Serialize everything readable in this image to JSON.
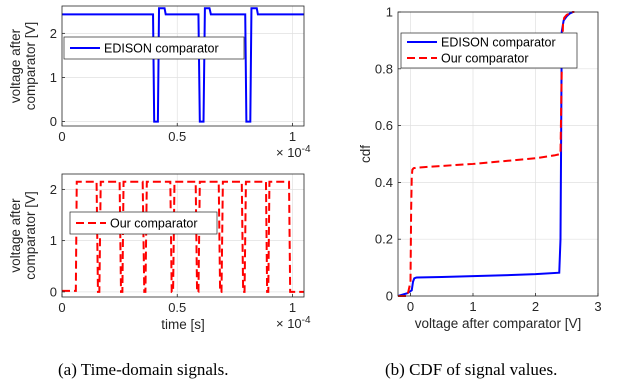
{
  "captions": {
    "a": "(a) Time-domain signals.",
    "b": "(b) CDF of signal values."
  },
  "colors": {
    "edison": "#0000ff",
    "ours": "#ff0000",
    "axis": "#262626",
    "grid": "#e0e0e0"
  },
  "chart_data": [
    {
      "id": "time-top",
      "type": "line",
      "title": "",
      "xlabel": "",
      "ylabel_lines": [
        "voltage after",
        "comparator [V]"
      ],
      "xlim": [
        0,
        0.000105
      ],
      "ylim": [
        -0.1,
        2.62
      ],
      "xticks": [
        0,
        5e-05,
        0.0001
      ],
      "xtick_labels": [
        "0",
        "0.5",
        "1"
      ],
      "yticks": [
        0,
        1,
        2
      ],
      "ytick_labels": [
        "0",
        "1",
        "2"
      ],
      "exponent_label": "× 10",
      "exponent_power": "-4",
      "grid": true,
      "legend_position": "middle-left",
      "series": [
        {
          "name": "EDISON comparator",
          "style": "solid",
          "color": "#0000ff",
          "x": [
            0,
            3.95e-05,
            4e-05,
            4.16e-05,
            4.21e-05,
            4.45e-05,
            4.5e-05,
            5.92e-05,
            5.98e-05,
            6.14e-05,
            6.2e-05,
            6.4e-05,
            6.46e-05,
            7.95e-05,
            8e-05,
            8.17e-05,
            8.22e-05,
            8.45e-05,
            8.5e-05,
            0.000105
          ],
          "y": [
            2.43,
            2.43,
            0,
            0,
            2.57,
            2.57,
            2.43,
            2.43,
            0,
            0,
            2.57,
            2.57,
            2.43,
            2.43,
            0,
            0,
            2.57,
            2.57,
            2.43,
            2.43
          ]
        }
      ]
    },
    {
      "id": "time-bottom",
      "type": "line",
      "title": "",
      "xlabel": "time [s]",
      "ylabel_lines": [
        "voltage after",
        "comparator [V]"
      ],
      "xlim": [
        0,
        0.000105
      ],
      "ylim": [
        -0.1,
        2.3
      ],
      "xticks": [
        0,
        5e-05,
        0.0001
      ],
      "xtick_labels": [
        "0",
        "0.5",
        "1"
      ],
      "yticks": [
        0,
        1,
        2
      ],
      "ytick_labels": [
        "0",
        "1",
        "2"
      ],
      "exponent_label": "× 10",
      "exponent_power": "-4",
      "grid": true,
      "legend_position": "middle-center",
      "series": [
        {
          "name": "Our comparator",
          "style": "dashed",
          "color": "#ff0000",
          "x": [
            0,
            6e-06,
            6.4e-06,
            1.5e-05,
            1.56e-05,
            1.62e-05,
            1.68e-05,
            2.5e-05,
            2.56e-05,
            2.62e-05,
            2.67e-05,
            3.5e-05,
            3.57e-05,
            3.62e-05,
            3.68e-05,
            4.7e-05,
            4.76e-05,
            4.82e-05,
            4.88e-05,
            5.8e-05,
            5.86e-05,
            5.92e-05,
            5.98e-05,
            6.8e-05,
            6.86e-05,
            6.92e-05,
            6.98e-05,
            7.8e-05,
            7.86e-05,
            7.92e-05,
            7.98e-05,
            8.85e-05,
            8.9e-05,
            8.95e-05,
            9e-05,
            9.85e-05,
            9.9e-05,
            0.000105
          ],
          "y": [
            0.02,
            0.02,
            2.15,
            2.15,
            0.0,
            0.0,
            2.15,
            2.15,
            0.0,
            0.0,
            2.15,
            2.15,
            0.0,
            0.0,
            2.15,
            2.15,
            0.0,
            0.0,
            2.15,
            2.15,
            0.0,
            0.0,
            2.15,
            2.15,
            0.0,
            0.0,
            2.15,
            2.15,
            0.0,
            0.0,
            2.15,
            2.15,
            0.0,
            0.0,
            2.15,
            2.15,
            0.0,
            0.0
          ]
        }
      ]
    },
    {
      "id": "cdf",
      "type": "line",
      "title": "",
      "xlabel": "voltage after comparator [V]",
      "ylabel": "cdf",
      "xlim": [
        -0.2,
        3.0
      ],
      "ylim": [
        0,
        1
      ],
      "xticks": [
        0,
        1,
        2,
        3
      ],
      "xtick_labels": [
        "0",
        "1",
        "2",
        "3"
      ],
      "yticks": [
        0,
        0.2,
        0.4,
        0.6,
        0.8,
        1
      ],
      "ytick_labels": [
        "0",
        "0.2",
        "0.4",
        "0.6",
        "0.8",
        "1"
      ],
      "grid": true,
      "legend_position": "top-left",
      "series": [
        {
          "name": "EDISON comparator",
          "style": "solid",
          "color": "#0000ff",
          "x": [
            -0.2,
            -0.05,
            0.02,
            0.04,
            0.06,
            0.08,
            0.1,
            0.5,
            1.0,
            1.5,
            2.0,
            2.38,
            2.4,
            2.41,
            2.42,
            2.45,
            2.5,
            2.55,
            2.6,
            2.62
          ],
          "y": [
            0.0,
            0.01,
            0.02,
            0.05,
            0.062,
            0.064,
            0.065,
            0.067,
            0.07,
            0.073,
            0.077,
            0.082,
            0.2,
            0.55,
            0.93,
            0.97,
            0.985,
            0.995,
            1.0,
            1.0
          ]
        },
        {
          "name": "Our comparator",
          "style": "dashed",
          "color": "#ff0000",
          "x": [
            -0.2,
            -0.05,
            0.0,
            0.01,
            0.02,
            0.03,
            0.05,
            0.1,
            0.5,
            1.0,
            1.5,
            2.0,
            2.3,
            2.4,
            2.42,
            2.44,
            2.46,
            2.5,
            2.55,
            2.6,
            2.62
          ],
          "y": [
            0.0,
            0.0,
            0.05,
            0.3,
            0.42,
            0.445,
            0.45,
            0.452,
            0.458,
            0.465,
            0.475,
            0.485,
            0.495,
            0.5,
            0.8,
            0.96,
            0.98,
            0.99,
            0.995,
            1.0,
            1.0
          ]
        }
      ]
    }
  ]
}
